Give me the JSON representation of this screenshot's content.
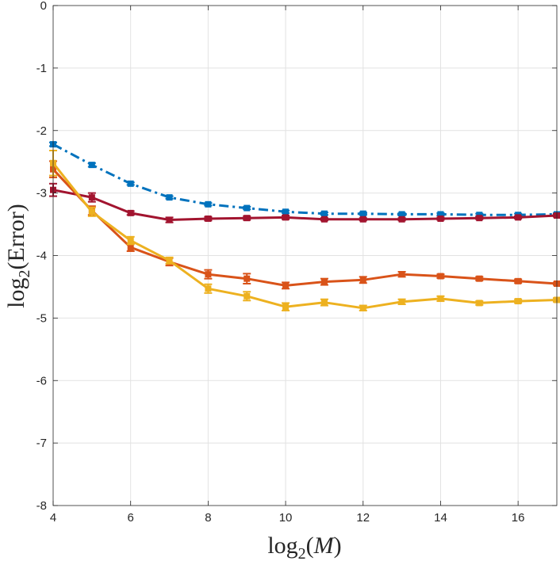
{
  "chart_data": {
    "type": "line",
    "title": "",
    "xlabel": "log2(M)",
    "ylabel": "log2(Error)",
    "xlabel_parts": {
      "pre": "log",
      "sub": "2",
      "open": "(",
      "var": "M",
      "close": ")"
    },
    "ylabel_parts": {
      "pre": "log",
      "sub": "2",
      "open": "(",
      "var": "Error",
      "close": ")"
    },
    "xlim": [
      4,
      17
    ],
    "ylim": [
      -8,
      0
    ],
    "xticks": [
      4,
      6,
      8,
      10,
      12,
      14,
      16
    ],
    "yticks": [
      0,
      -1,
      -2,
      -3,
      -4,
      -5,
      -6,
      -7,
      -8
    ],
    "xtick_labels": [
      "4",
      "6",
      "8",
      "10",
      "12",
      "14",
      "16"
    ],
    "ytick_labels": [
      "0",
      "-1",
      "-2",
      "-3",
      "-4",
      "-5",
      "-6",
      "-7",
      "-8"
    ],
    "grid": true,
    "x": [
      4,
      5,
      6,
      7,
      8,
      9,
      10,
      11,
      12,
      13,
      14,
      15,
      16,
      17
    ],
    "series": [
      {
        "name": "series-blue-dashdot",
        "color": "#0072BD",
        "dash": "dashdot",
        "values": [
          -2.22,
          -2.55,
          -2.85,
          -3.07,
          -3.18,
          -3.24,
          -3.3,
          -3.33,
          -3.33,
          -3.34,
          -3.34,
          -3.35,
          -3.35,
          -3.34
        ],
        "err": [
          0.03,
          0.03,
          0.02,
          0.02,
          0.02,
          0.02,
          0.02,
          0.02,
          0.02,
          0.02,
          0.02,
          0.02,
          0.02,
          0.02
        ]
      },
      {
        "name": "series-darkred-solid",
        "color": "#A2142F",
        "dash": "solid",
        "values": [
          -2.95,
          -3.07,
          -3.32,
          -3.43,
          -3.41,
          -3.4,
          -3.39,
          -3.42,
          -3.42,
          -3.42,
          -3.41,
          -3.4,
          -3.39,
          -3.36
        ],
        "err": [
          0.1,
          0.07,
          0.03,
          0.04,
          0.03,
          0.03,
          0.03,
          0.02,
          0.02,
          0.02,
          0.02,
          0.02,
          0.02,
          0.02
        ]
      },
      {
        "name": "series-orange-solid",
        "color": "#D95319",
        "dash": "solid",
        "values": [
          -2.62,
          -3.28,
          -3.87,
          -4.1,
          -4.3,
          -4.37,
          -4.48,
          -4.42,
          -4.39,
          -4.3,
          -4.33,
          -4.37,
          -4.41,
          -4.45
        ],
        "err": [
          0.13,
          0.07,
          0.06,
          0.06,
          0.07,
          0.08,
          0.05,
          0.05,
          0.05,
          0.04,
          0.03,
          0.03,
          0.03,
          0.02
        ]
      },
      {
        "name": "series-yellow-solid",
        "color": "#EDB120",
        "dash": "solid",
        "values": [
          -2.52,
          -3.3,
          -3.76,
          -4.08,
          -4.53,
          -4.65,
          -4.82,
          -4.75,
          -4.84,
          -4.74,
          -4.69,
          -4.76,
          -4.73,
          -4.71
        ],
        "err": [
          0.2,
          0.07,
          0.06,
          0.05,
          0.07,
          0.07,
          0.06,
          0.05,
          0.04,
          0.04,
          0.04,
          0.03,
          0.03,
          0.03
        ]
      }
    ]
  }
}
